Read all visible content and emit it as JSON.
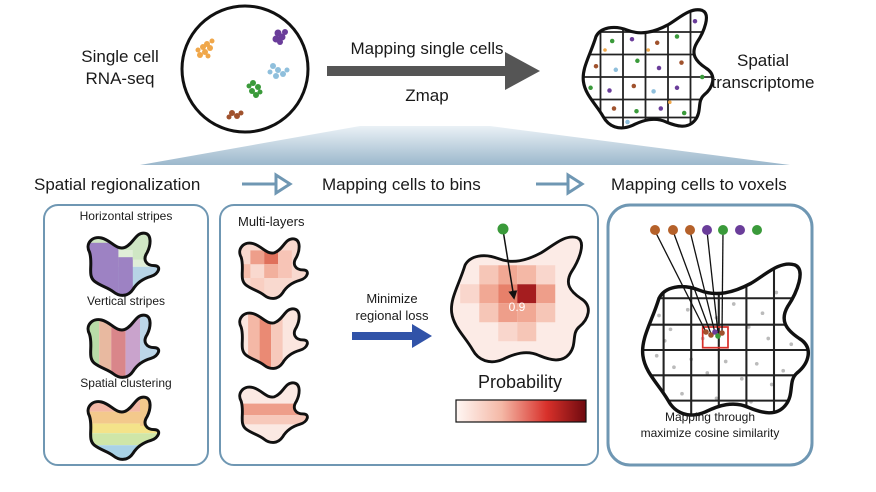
{
  "top": {
    "left_label_line1": "Single cell",
    "left_label_line2": "RNA-seq",
    "arrow_label": "Mapping single cells",
    "tool_label": "Zmap",
    "right_label_line1": "Spatial",
    "right_label_line2": "transcriptome"
  },
  "sections": {
    "regionalization": "Spatial regionalization",
    "bins": "Mapping cells to bins",
    "voxels": "Mapping cells to voxels"
  },
  "panel1": {
    "horizontal": "Horizontal stripes",
    "vertical": "Vertical stripes",
    "clustering": "Spatial clustering"
  },
  "panel2": {
    "layers": "Multi-layers",
    "minimize_line1": "Minimize",
    "minimize_line2": "regional loss",
    "bin_value": "0.9",
    "probability": "Probability"
  },
  "panel3": {
    "caption_line1": "Mapping through",
    "caption_line2": "maximize cosine similarity"
  },
  "colors": {
    "arrow_gray": "#555555",
    "panel_border": "#6f97b3",
    "blue_arrow": "#3153a8",
    "probability_dark": "#8c0f14",
    "probability_light": "#fbe9e5"
  }
}
